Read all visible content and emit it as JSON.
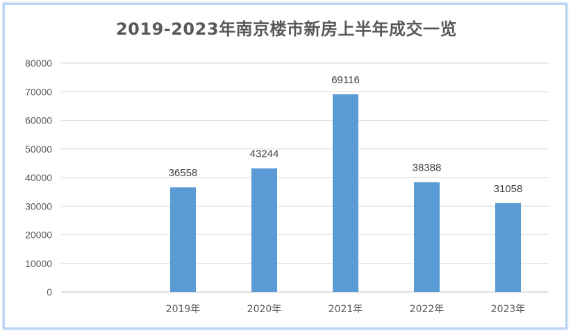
{
  "chart_data": {
    "type": "bar",
    "title": "2019-2023年南京楼市新房上半年成交一览",
    "categories": [
      "",
      "2019年",
      "2020年",
      "2021年",
      "2022年",
      "2023年"
    ],
    "values": [
      null,
      36558,
      43244,
      69116,
      38388,
      31058
    ],
    "data_labels": [
      "",
      "36558",
      "43244",
      "69116",
      "38388",
      "31058"
    ],
    "ylim": [
      0,
      80000
    ],
    "yticks": [
      0,
      10000,
      20000,
      30000,
      40000,
      50000,
      60000,
      70000,
      80000
    ],
    "grid": true,
    "legend": "none",
    "bar_color": "#5b9bd5",
    "xlabel": "",
    "ylabel": ""
  }
}
